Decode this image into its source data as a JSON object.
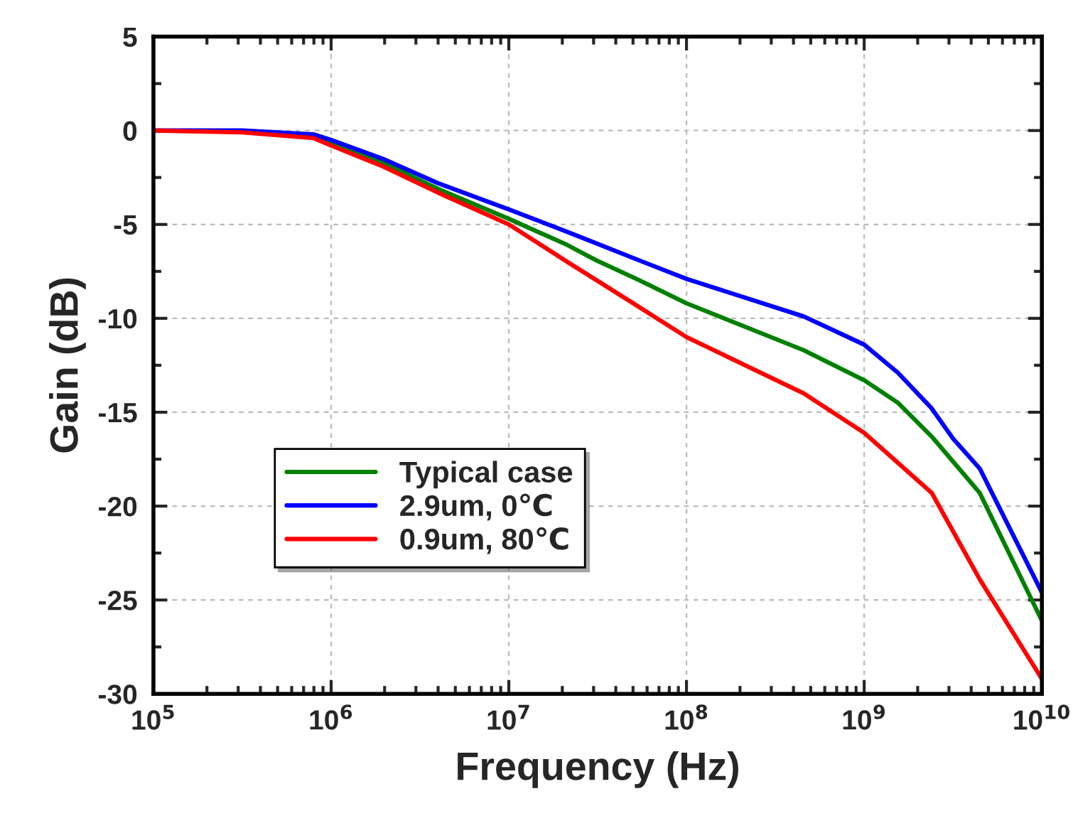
{
  "chart_data": {
    "type": "line",
    "xlabel": "Frequency (Hz)",
    "ylabel": "Gain (dB)",
    "log": "x",
    "xlim": [
      100000.0,
      10000000000.0
    ],
    "xticks": [
      {
        "value": 100000.0,
        "label": "10$^{5}$"
      },
      {
        "value": 1000000.0,
        "label": "10$^{6}$"
      },
      {
        "value": 10000000.0,
        "label": "10$^{7}$"
      },
      {
        "value": 100000000.0,
        "label": "10$^{8}$"
      },
      {
        "value": 1000000000.0,
        "label": "10$^{9}$"
      },
      {
        "value": 10000000000.0,
        "label": "10$^{10}$"
      }
    ],
    "ylim": [
      -30,
      5
    ],
    "yticks": [
      -30,
      -25,
      -20,
      -15,
      -10,
      -5,
      0,
      5
    ],
    "grid": true,
    "legend": "bottom left",
    "line_style": "solid",
    "marker": "none",
    "series": [
      {
        "name": "Typical case",
        "color": "#008000",
        "x": [
          794000.0,
          1000000.0,
          1950000.0,
          3980000.0,
          10000000.0,
          21400000.0,
          30900000.0,
          53700000.0,
          100000000.0,
          457000000.0,
          1000000000.0,
          1550000000.0,
          2400000000.0,
          4470000000.0,
          10000000000.0
        ],
        "values": [
          -0.3,
          -0.6,
          -1.7,
          -3.1,
          -4.7,
          -6.1,
          -6.9,
          -7.95,
          -9.2,
          -11.7,
          -13.3,
          -14.5,
          -16.3,
          -19.3,
          -26.1
        ]
      },
      {
        "name": "2.9um, 0℃",
        "color": "#0000ff",
        "x": [
          100000.0,
          316000.0,
          794000.0,
          1000000.0,
          1950000.0,
          3980000.0,
          10000000.0,
          21400000.0,
          30900000.0,
          53700000.0,
          100000000.0,
          457000000.0,
          1000000000.0,
          1550000000.0,
          2400000000.0,
          3160000000.0,
          4470000000.0,
          10000000000.0
        ],
        "values": [
          0,
          0,
          -0.2,
          -0.5,
          -1.5,
          -2.8,
          -4.2,
          -5.4,
          -6.0,
          -6.9,
          -7.9,
          -9.9,
          -11.4,
          -12.9,
          -14.8,
          -16.4,
          -18.0,
          -24.6
        ]
      },
      {
        "name": "0.9um, 80℃",
        "color": "#ff0000",
        "x": [
          100000.0,
          316000.0,
          794000.0,
          1000000.0,
          1950000.0,
          3980000.0,
          10000000.0,
          21400000.0,
          44700000.0,
          100000000.0,
          457000000.0,
          1000000000.0,
          2400000000.0,
          4470000000.0,
          10000000000.0
        ],
        "values": [
          0,
          -0.1,
          -0.4,
          -0.8,
          -1.9,
          -3.3,
          -5.0,
          -7.0,
          -8.9,
          -11.0,
          -14.0,
          -16.1,
          -19.3,
          -23.9,
          -29.2
        ]
      }
    ]
  }
}
